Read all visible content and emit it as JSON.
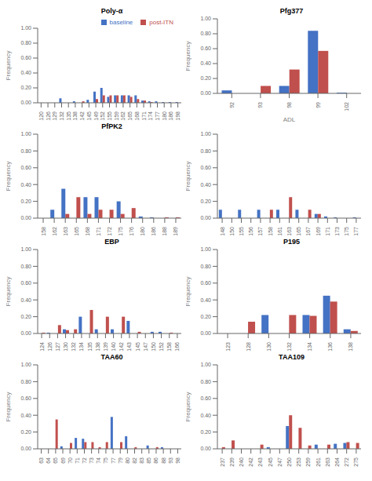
{
  "chart_data": [
    {
      "type": "bar",
      "title": "Poly-α",
      "ylabel": "Frequency",
      "legend": "upper right",
      "categories": [
        "120",
        "126",
        "129",
        "132",
        "135",
        "138",
        "142",
        "145",
        "149",
        "152",
        "155",
        "159",
        "162",
        "165",
        "168",
        "171",
        "174",
        "177",
        "180",
        "186",
        "198"
      ],
      "series": [
        {
          "name": "baseline",
          "color": "#4472C4",
          "values": [
            0,
            0,
            0,
            0.06,
            0,
            0.02,
            0,
            0.04,
            0.15,
            0.2,
            0.08,
            0.1,
            0.1,
            0.1,
            0.1,
            0.03,
            0.02,
            0.02,
            0.01,
            0.01,
            0.01
          ]
        },
        {
          "name": "post-ITN",
          "color": "#C0504D",
          "values": [
            0,
            0,
            0,
            0,
            0,
            0,
            0.02,
            0,
            0.05,
            0.1,
            0.1,
            0.1,
            0.1,
            0.08,
            0.05,
            0.03,
            0.01,
            0,
            0,
            0,
            0
          ]
        }
      ],
      "ylim": [
        0,
        1.0
      ],
      "yticks": [
        {
          "value": 0,
          "label": "0.00"
        },
        {
          "value": 0.2,
          "label": "0.20"
        },
        {
          "value": 0.4,
          "label": "0.40"
        },
        {
          "value": 0.6,
          "label": "0.60"
        },
        {
          "value": 0.8,
          "label": "0.80"
        },
        {
          "value": 1.0,
          "label": "1.00"
        }
      ]
    },
    {
      "type": "bar",
      "title": "Pfg377",
      "xlabel": "ADL",
      "ylabel": "Frequency",
      "categories": [
        "92",
        "93",
        "98",
        "99",
        "102"
      ],
      "series": [
        {
          "name": "baseline",
          "color": "#4472C4",
          "values": [
            0.04,
            0,
            0.1,
            0.84,
            0.01
          ]
        },
        {
          "name": "post-ITN",
          "color": "#C0504D",
          "values": [
            0,
            0.1,
            0.32,
            0.57,
            0
          ]
        }
      ],
      "ylim": [
        0,
        1.0
      ],
      "yticks": [
        {
          "value": 0,
          "label": "0.00"
        },
        {
          "value": 0.2,
          "label": "0.20"
        },
        {
          "value": 0.4,
          "label": "0.40"
        },
        {
          "value": 0.6,
          "label": "0.60"
        },
        {
          "value": 0.8,
          "label": "0.80"
        },
        {
          "value": 1.0,
          "label": "1.00"
        }
      ]
    },
    {
      "type": "bar",
      "title": "PfPK2",
      "ylabel": "Frequency",
      "categories": [
        "158",
        "162",
        "163",
        "165",
        "168",
        "171",
        "172",
        "175",
        "176",
        "180",
        "186",
        "188",
        "189"
      ],
      "series": [
        {
          "name": "baseline",
          "color": "#4472C4",
          "values": [
            0,
            0.1,
            0.35,
            0,
            0.25,
            0.25,
            0,
            0.2,
            0,
            0.02,
            0.01,
            0,
            0
          ]
        },
        {
          "name": "post-ITN",
          "color": "#C0504D",
          "values": [
            0,
            0,
            0.05,
            0.25,
            0.05,
            0.1,
            0.1,
            0.05,
            0.12,
            0,
            0,
            0.01,
            0.01
          ]
        }
      ],
      "ylim": [
        0,
        1.0
      ],
      "yticks": [
        {
          "value": 0,
          "label": "0.00"
        },
        {
          "value": 0.2,
          "label": "0.20"
        },
        {
          "value": 0.4,
          "label": "0.40"
        },
        {
          "value": 0.6,
          "label": "0.60"
        },
        {
          "value": 0.8,
          "label": "0.80"
        },
        {
          "value": 1.0,
          "label": "1.00"
        }
      ]
    },
    {
      "type": "bar",
      "ylabel": "Frequency",
      "categories": [
        "148",
        "150",
        "155",
        "156",
        "157",
        "158",
        "161",
        "163",
        "165",
        "167",
        "169",
        "171",
        "173",
        "175",
        "177"
      ],
      "series": [
        {
          "name": "baseline",
          "color": "#4472C4",
          "values": [
            0.1,
            0,
            0.1,
            0,
            0.1,
            0,
            0.1,
            0,
            0.1,
            0,
            0.05,
            0.02,
            0.01,
            0,
            0.01
          ]
        },
        {
          "name": "post-ITN",
          "color": "#C0504D",
          "values": [
            0,
            0,
            0,
            0,
            0,
            0.1,
            0,
            0.25,
            0,
            0.1,
            0.05,
            0,
            0,
            0,
            0
          ]
        }
      ],
      "ylim": [
        0,
        1.0
      ],
      "yticks": [
        {
          "value": 0,
          "label": "0.00"
        },
        {
          "value": 0.2,
          "label": "0.20"
        },
        {
          "value": 0.4,
          "label": "0.40"
        },
        {
          "value": 0.6,
          "label": "0.60"
        },
        {
          "value": 0.8,
          "label": "0.80"
        },
        {
          "value": 1.0,
          "label": "1.00"
        }
      ]
    },
    {
      "type": "bar",
      "title": "EBP",
      "ylabel": "Frequency",
      "categories": [
        "124",
        "126",
        "127",
        "130",
        "132",
        "134",
        "135",
        "138",
        "139",
        "140",
        "142",
        "143",
        "145",
        "147",
        "150",
        "152",
        "158",
        "166"
      ],
      "series": [
        {
          "name": "baseline",
          "color": "#4472C4",
          "values": [
            0,
            0.01,
            0,
            0.05,
            0,
            0.2,
            0,
            0.05,
            0,
            0.05,
            0,
            0.15,
            0,
            0,
            0.02,
            0.02,
            0,
            0
          ]
        },
        {
          "name": "post-ITN",
          "color": "#C0504D",
          "values": [
            0.01,
            0,
            0.1,
            0.04,
            0.05,
            0,
            0.28,
            0,
            0.2,
            0,
            0.2,
            0,
            0.02,
            0,
            0,
            0,
            0.01,
            0
          ]
        }
      ],
      "ylim": [
        0,
        1.0
      ],
      "yticks": [
        {
          "value": 0,
          "label": "0.00"
        },
        {
          "value": 0.2,
          "label": "0.20"
        },
        {
          "value": 0.4,
          "label": "0.40"
        },
        {
          "value": 0.6,
          "label": "0.60"
        },
        {
          "value": 0.8,
          "label": "0.80"
        },
        {
          "value": 1.0,
          "label": "1.00"
        }
      ]
    },
    {
      "type": "bar",
      "title": "P195",
      "ylabel": "Frequency",
      "categories": [
        "123",
        "128",
        "130",
        "132",
        "134",
        "136",
        "138"
      ],
      "series": [
        {
          "name": "baseline",
          "color": "#4472C4",
          "values": [
            0,
            0,
            0.22,
            0,
            0.22,
            0.45,
            0.05
          ]
        },
        {
          "name": "post-ITN",
          "color": "#C0504D",
          "values": [
            0,
            0.14,
            0,
            0.22,
            0.21,
            0.38,
            0.03
          ]
        }
      ],
      "ylim": [
        0,
        1.0
      ],
      "yticks": [
        {
          "value": 0,
          "label": "0.00"
        },
        {
          "value": 0.2,
          "label": "0.20"
        },
        {
          "value": 0.4,
          "label": "0.40"
        },
        {
          "value": 0.6,
          "label": "0.60"
        },
        {
          "value": 0.8,
          "label": "0.80"
        },
        {
          "value": 1.0,
          "label": "1.00"
        }
      ]
    },
    {
      "type": "bar",
      "title": "TAA60",
      "ylabel": "Frequency",
      "categories": [
        "63",
        "64",
        "65",
        "69",
        "70",
        "71",
        "72",
        "73",
        "74",
        "75",
        "77",
        "79",
        "80",
        "82",
        "83",
        "85",
        "86",
        "88",
        "93",
        "98"
      ],
      "series": [
        {
          "name": "baseline",
          "color": "#4472C4",
          "values": [
            0,
            0,
            0,
            0.03,
            0,
            0.13,
            0.12,
            0,
            0,
            0,
            0.38,
            0,
            0.15,
            0,
            0,
            0.04,
            0,
            0.02,
            0,
            0
          ]
        },
        {
          "name": "post-ITN",
          "color": "#C0504D",
          "values": [
            0,
            0,
            0.35,
            0,
            0.07,
            0,
            0.08,
            0.08,
            0.02,
            0.08,
            0,
            0.08,
            0,
            0.02,
            0,
            0,
            0.02,
            0,
            0,
            0
          ]
        }
      ],
      "ylim": [
        0,
        1.0
      ],
      "yticks": [
        {
          "value": 0,
          "label": "0.00"
        },
        {
          "value": 0.2,
          "label": "0.20"
        },
        {
          "value": 0.4,
          "label": "0.40"
        },
        {
          "value": 0.6,
          "label": "0.60"
        },
        {
          "value": 0.8,
          "label": "0.80"
        },
        {
          "value": 1.0,
          "label": "1.00"
        }
      ]
    },
    {
      "type": "bar",
      "title": "TAA109",
      "ylabel": "Frequency",
      "categories": [
        "237",
        "239",
        "240",
        "242",
        "243",
        "245",
        "247",
        "250",
        "253",
        "259",
        "261",
        "263",
        "264",
        "272",
        "275"
      ],
      "series": [
        {
          "name": "baseline",
          "color": "#4472C4",
          "values": [
            0,
            0,
            0,
            0,
            0,
            0.02,
            0,
            0.27,
            0,
            0,
            0.05,
            0,
            0.06,
            0.07,
            0
          ]
        },
        {
          "name": "post-ITN",
          "color": "#C0504D",
          "values": [
            0.02,
            0.1,
            0,
            0,
            0.05,
            0,
            0,
            0.4,
            0.25,
            0.04,
            0,
            0.05,
            0,
            0.08,
            0.07
          ]
        }
      ],
      "ylim": [
        0,
        1.0
      ],
      "yticks": [
        {
          "value": 0,
          "label": "0.00"
        },
        {
          "value": 0.2,
          "label": "0.20"
        },
        {
          "value": 0.4,
          "label": "0.40"
        },
        {
          "value": 0.6,
          "label": "0.60"
        },
        {
          "value": 0.8,
          "label": "0.80"
        },
        {
          "value": 1.0,
          "label": "1.00"
        }
      ]
    }
  ]
}
